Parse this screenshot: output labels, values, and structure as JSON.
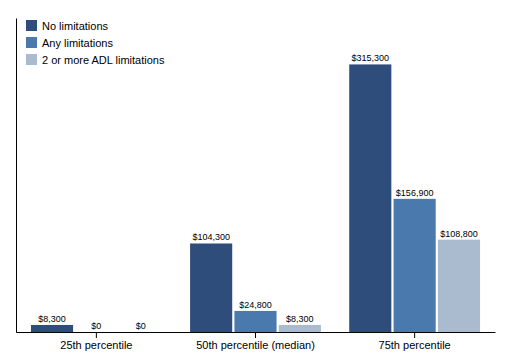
{
  "chart_data": {
    "type": "bar",
    "categories": [
      "25th percentile",
      "50th percentile (median)",
      "75th percentile"
    ],
    "series": [
      {
        "name": "No limitations",
        "color": "#2E4D7B",
        "values": [
          8300,
          104300,
          315300
        ],
        "value_labels": [
          "$8,300",
          "$104,300",
          "$315,300"
        ]
      },
      {
        "name": "Any limitations",
        "color": "#4A7AAD",
        "values": [
          0,
          24800,
          156900
        ],
        "value_labels": [
          "$0",
          "$24,800",
          "$156,900"
        ]
      },
      {
        "name": "2 or more ADL limitations",
        "color": "#AABBD0",
        "values": [
          0,
          8300,
          108800
        ],
        "value_labels": [
          "$0",
          "$8,300",
          "$108,800"
        ]
      }
    ],
    "ylim": [
      0,
      370000
    ],
    "data_labels": true,
    "tick_labels": "x",
    "legend": "upper left"
  }
}
